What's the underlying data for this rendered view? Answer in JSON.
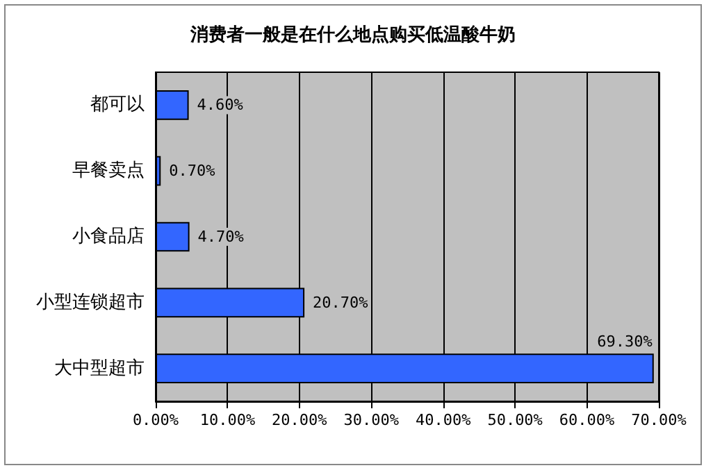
{
  "chart_data": {
    "type": "bar",
    "orientation": "horizontal",
    "title": "消费者一般是在什么地点购买低温酸牛奶",
    "categories": [
      "都可以",
      "早餐卖点",
      "小食品店",
      "小型连锁超市",
      "大中型超市"
    ],
    "values": [
      4.6,
      0.7,
      4.7,
      20.7,
      69.3
    ],
    "value_labels": [
      "4.60%",
      "0.70%",
      "4.70%",
      "20.70%",
      "69.30%"
    ],
    "color": "#3366ff",
    "xlim": [
      0,
      70
    ],
    "xticks": [
      {
        "value": 0,
        "label": "0.00%"
      },
      {
        "value": 10,
        "label": "10.00%"
      },
      {
        "value": 20,
        "label": "20.00%"
      },
      {
        "value": 30,
        "label": "30.00%"
      },
      {
        "value": 40,
        "label": "40.00%"
      },
      {
        "value": 50,
        "label": "50.00%"
      },
      {
        "value": 60,
        "label": "60.00%"
      },
      {
        "value": 70,
        "label": "70.00%"
      }
    ],
    "grid": "x"
  }
}
